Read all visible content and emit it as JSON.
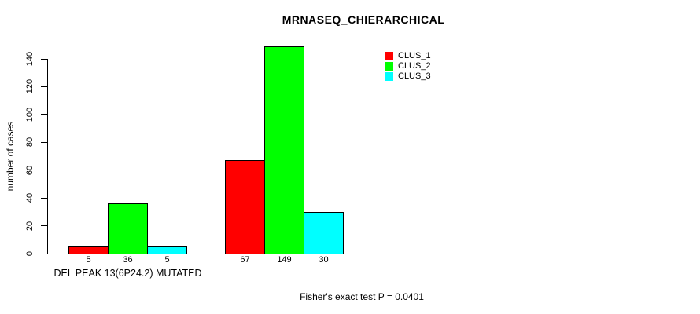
{
  "title": "MRNASEQ_CHIERARCHICAL",
  "footer": {
    "stat_text": "Fisher's exact test P = 0.0401"
  },
  "chart_data": {
    "type": "bar",
    "title": "MRNASEQ_CHIERARCHICAL",
    "xlabel": "",
    "ylabel": "number of cases",
    "ylim": [
      0,
      140
    ],
    "yticks": [
      0,
      20,
      40,
      60,
      80,
      100,
      120,
      140
    ],
    "grid": false,
    "legend_position": "top-right",
    "series": [
      {
        "name": "CLUS_1",
        "color": "#ff0000"
      },
      {
        "name": "CLUS_2",
        "color": "#00ff00"
      },
      {
        "name": "CLUS_3",
        "color": "#00ffff"
      }
    ],
    "groups": [
      {
        "label": "DEL PEAK 13(6P24.2) MUTATED",
        "values": [
          5,
          36,
          5
        ]
      },
      {
        "label": "",
        "values": [
          67,
          149,
          30
        ]
      }
    ],
    "bar_border_color": "#000000",
    "annotation": "Fisher's exact test P = 0.0401"
  }
}
